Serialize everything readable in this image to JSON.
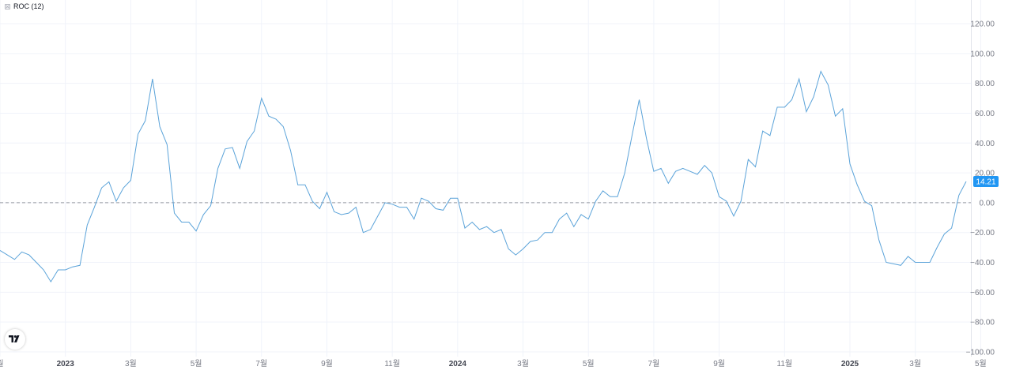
{
  "indicator": {
    "label": "ROC (12)"
  },
  "colors": {
    "line": "#5ba3d9",
    "badge": "#2196f3",
    "zero_line": "#9598a1",
    "grid": "#f0f3fa",
    "axis_text": "#787b86"
  },
  "logo": {
    "icon": "tradingview-logo-icon"
  },
  "chart_data": {
    "type": "line",
    "title": "ROC (12)",
    "xlabel": "",
    "ylabel": "",
    "ylim": [
      -100,
      120
    ],
    "grid": true,
    "y_ticks": [
      {
        "value": 120,
        "label": "120.00"
      },
      {
        "value": 100,
        "label": "100.00"
      },
      {
        "value": 80,
        "label": "80.00"
      },
      {
        "value": 60,
        "label": "60.00"
      },
      {
        "value": 40,
        "label": "40.00"
      },
      {
        "value": 20,
        "label": "20.00"
      },
      {
        "value": 0,
        "label": "0.00"
      },
      {
        "value": -20,
        "label": "−20.00"
      },
      {
        "value": -40,
        "label": "−40.00"
      },
      {
        "value": -60,
        "label": "−60.00"
      },
      {
        "value": -80,
        "label": "−80.00"
      },
      {
        "value": -100,
        "label": "−100.00"
      }
    ],
    "x_ticks": [
      {
        "index": 0,
        "label": "월",
        "bold": false
      },
      {
        "index": 9,
        "label": "2023",
        "bold": true
      },
      {
        "index": 18,
        "label": "3월",
        "bold": false
      },
      {
        "index": 27,
        "label": "5월",
        "bold": false
      },
      {
        "index": 36,
        "label": "7월",
        "bold": false
      },
      {
        "index": 45,
        "label": "9월",
        "bold": false
      },
      {
        "index": 54,
        "label": "11월",
        "bold": false
      },
      {
        "index": 63,
        "label": "2024",
        "bold": true
      },
      {
        "index": 72,
        "label": "3월",
        "bold": false
      },
      {
        "index": 81,
        "label": "5월",
        "bold": false
      },
      {
        "index": 90,
        "label": "7월",
        "bold": false
      },
      {
        "index": 99,
        "label": "9월",
        "bold": false
      },
      {
        "index": 108,
        "label": "11월",
        "bold": false
      },
      {
        "index": 117,
        "label": "2025",
        "bold": true
      },
      {
        "index": 126,
        "label": "3월",
        "bold": false
      },
      {
        "index": 135,
        "label": "5월",
        "bold": false
      }
    ],
    "reference_line": 0,
    "last_value_label": "14.21",
    "series": [
      {
        "values": [
          -32,
          -35,
          -38,
          -33,
          -35,
          -40,
          -45,
          -53,
          -45,
          -45,
          -43,
          -42,
          -15,
          -3,
          10,
          14,
          1,
          10,
          15,
          46,
          55,
          83,
          51,
          39,
          -7,
          -13,
          -13,
          -19,
          -8,
          -2,
          23,
          36,
          37,
          23,
          41,
          48,
          70,
          58,
          56,
          51,
          35,
          12,
          12,
          1,
          -4,
          7,
          -6,
          -8,
          -7,
          -3,
          -20,
          -18,
          -9,
          0,
          -1,
          -3,
          -3,
          -11,
          3,
          1,
          -4,
          -5,
          3,
          3,
          -17,
          -13,
          -18,
          -16,
          -20,
          -18,
          -31,
          -35,
          -31,
          -26,
          -25,
          -20,
          -20,
          -11,
          -7,
          -16,
          -8,
          -11,
          1,
          8,
          4,
          4,
          20,
          45,
          69,
          43,
          21,
          23,
          13,
          21,
          23,
          21,
          19,
          25,
          20,
          4,
          1,
          -9,
          1,
          29,
          24,
          48,
          45,
          64,
          64,
          69,
          83,
          61,
          71,
          88,
          79,
          58,
          63,
          26,
          12,
          1,
          -2,
          -25,
          -40,
          -41,
          -42,
          -36,
          -40,
          -40,
          -40,
          -30,
          -21,
          -17,
          5,
          14.21
        ]
      }
    ]
  }
}
